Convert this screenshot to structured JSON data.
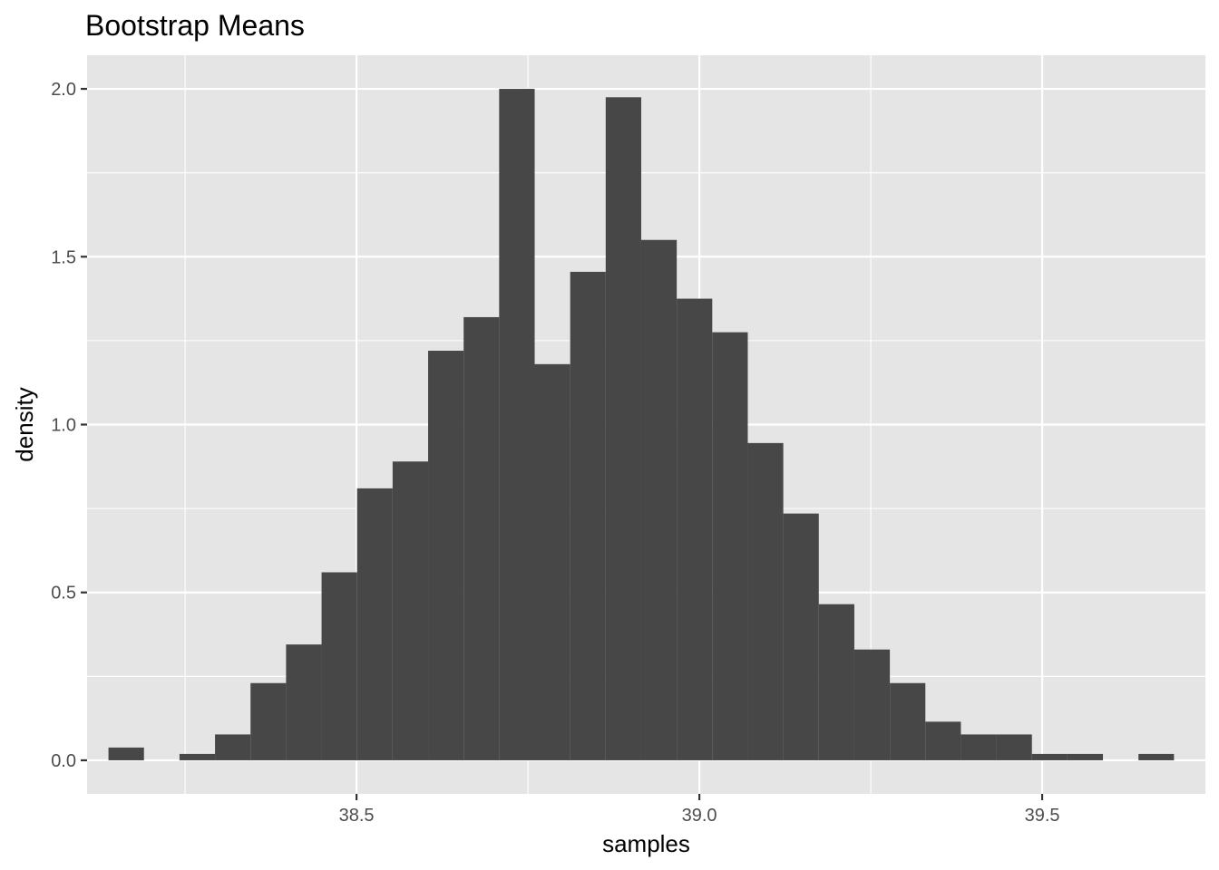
{
  "chart_data": {
    "type": "bar",
    "title": "Bootstrap Means",
    "xlabel": "samples",
    "ylabel": "density",
    "xlim": [
      38.107,
      39.738
    ],
    "ylim": [
      -0.1,
      2.1
    ],
    "xticks": [
      38.5,
      39.0,
      39.5
    ],
    "xtick_labels": [
      "38.5",
      "39.0",
      "39.5"
    ],
    "xminor": [
      38.25,
      38.75,
      39.25
    ],
    "yticks": [
      0.0,
      0.5,
      1.0,
      1.5,
      2.0
    ],
    "ytick_labels": [
      "0.0",
      "0.5",
      "1.0",
      "1.5",
      "2.0"
    ],
    "yminor": [
      0.25,
      0.75,
      1.25,
      1.75
    ],
    "grid": true,
    "bin_width": 0.0518,
    "bin_centers": [
      38.1641,
      38.2159,
      38.2677,
      38.3195,
      38.3713,
      38.4231,
      38.4749,
      38.5267,
      38.5785,
      38.6303,
      38.6821,
      38.7339,
      38.7857,
      38.8375,
      38.8893,
      38.9411,
      38.9929,
      39.0447,
      39.0965,
      39.1483,
      39.2001,
      39.2519,
      39.3037,
      39.3555,
      39.4073,
      39.4591,
      39.5109,
      39.5627,
      39.6145,
      39.6663
    ],
    "values": [
      0.038,
      0.0,
      0.019,
      0.077,
      0.23,
      0.345,
      0.56,
      0.81,
      0.89,
      1.22,
      1.32,
      2.0,
      1.18,
      1.455,
      1.975,
      1.55,
      1.375,
      1.275,
      0.945,
      0.735,
      0.465,
      0.33,
      0.23,
      0.115,
      0.077,
      0.077,
      0.019,
      0.019,
      0.0,
      0.019
    ]
  }
}
